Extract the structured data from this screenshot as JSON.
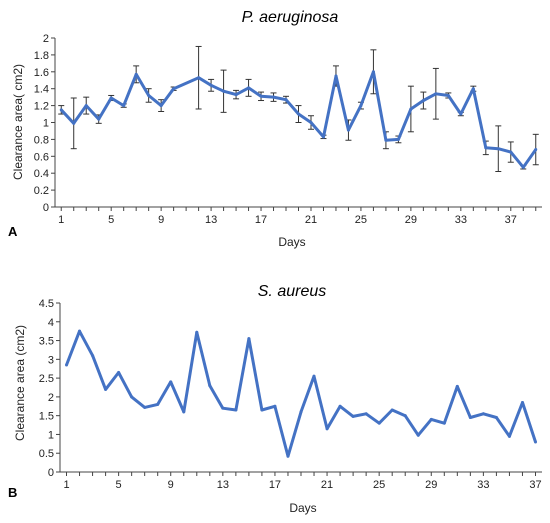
{
  "chart_data": [
    {
      "type": "line",
      "title": "P. aeruginosa",
      "panel_label": "A",
      "xlabel": "Days",
      "ylabel": "Clearance area( cm2)",
      "xlim": [
        0.5,
        39.5
      ],
      "ylim": [
        0,
        2
      ],
      "xticks": [
        1,
        5,
        9,
        13,
        17,
        21,
        25,
        29,
        33,
        37
      ],
      "yticks": [
        "0",
        "0.2",
        "0.4",
        "0.6",
        "0.8",
        "1",
        "1.2",
        "1.4",
        "1.6",
        "1.8",
        "2"
      ],
      "yticks_values": [
        0,
        0.2,
        0.4,
        0.6,
        0.8,
        1,
        1.2,
        1.4,
        1.6,
        1.8,
        2
      ],
      "color": "#4472c4",
      "grid": false,
      "x": [
        1,
        2,
        3,
        4,
        5,
        6,
        7,
        8,
        9,
        10,
        12,
        13,
        14,
        15,
        16,
        17,
        18,
        19,
        20,
        21,
        22,
        23,
        24,
        25,
        26,
        27,
        28,
        29,
        30,
        31,
        32,
        33,
        34,
        35,
        36,
        37,
        38,
        39
      ],
      "values": [
        1.15,
        0.99,
        1.2,
        1.04,
        1.29,
        1.2,
        1.57,
        1.32,
        1.2,
        1.4,
        1.53,
        1.44,
        1.37,
        1.33,
        1.41,
        1.31,
        1.3,
        1.27,
        1.1,
        1.0,
        0.83,
        1.55,
        0.91,
        1.2,
        1.6,
        0.79,
        0.8,
        1.16,
        1.26,
        1.34,
        1.32,
        1.1,
        1.4,
        0.7,
        0.69,
        0.65,
        0.47,
        0.68
      ],
      "errors": [
        0.05,
        0.3,
        0.1,
        0.05,
        0.03,
        0.02,
        0.1,
        0.08,
        0.07,
        0.02,
        0.37,
        0.07,
        0.25,
        0.05,
        0.1,
        0.05,
        0.05,
        0.04,
        0.1,
        0.08,
        0.02,
        0.12,
        0.12,
        0.04,
        0.26,
        0.1,
        0.04,
        0.27,
        0.1,
        0.3,
        0.03,
        0.02,
        0.03,
        0.08,
        0.27,
        0.12,
        0.02,
        0.18
      ]
    },
    {
      "type": "line",
      "title": "S. aureus",
      "panel_label": "B",
      "xlabel": "Days",
      "ylabel": "Clearance area (cm2)",
      "xlim": [
        0.5,
        37.5
      ],
      "ylim": [
        0,
        4.5
      ],
      "xticks": [
        1,
        5,
        9,
        13,
        17,
        21,
        25,
        29,
        33,
        37
      ],
      "yticks": [
        "0",
        "0.5",
        "1",
        "1.5",
        "2",
        "2.5",
        "3",
        "3.5",
        "4",
        "4.5"
      ],
      "yticks_values": [
        0,
        0.5,
        1,
        1.5,
        2,
        2.5,
        3,
        3.5,
        4,
        4.5
      ],
      "color": "#4472c4",
      "grid": false,
      "x": [
        1,
        2,
        3,
        4,
        5,
        6,
        7,
        8,
        9,
        10,
        11,
        12,
        13,
        14,
        15,
        16,
        17,
        18,
        19,
        20,
        21,
        22,
        23,
        24,
        25,
        26,
        27,
        28,
        29,
        30,
        31,
        32,
        33,
        34,
        35,
        36,
        37
      ],
      "values": [
        2.85,
        3.75,
        3.1,
        2.2,
        2.65,
        2.0,
        1.72,
        1.8,
        2.4,
        1.6,
        3.72,
        2.3,
        1.7,
        1.65,
        3.55,
        1.65,
        1.75,
        0.42,
        1.6,
        2.55,
        1.15,
        1.75,
        1.48,
        1.55,
        1.3,
        1.65,
        1.5,
        0.98,
        1.4,
        1.3,
        2.28,
        1.45,
        1.55,
        1.45,
        0.95,
        1.85,
        0.8
      ]
    }
  ]
}
